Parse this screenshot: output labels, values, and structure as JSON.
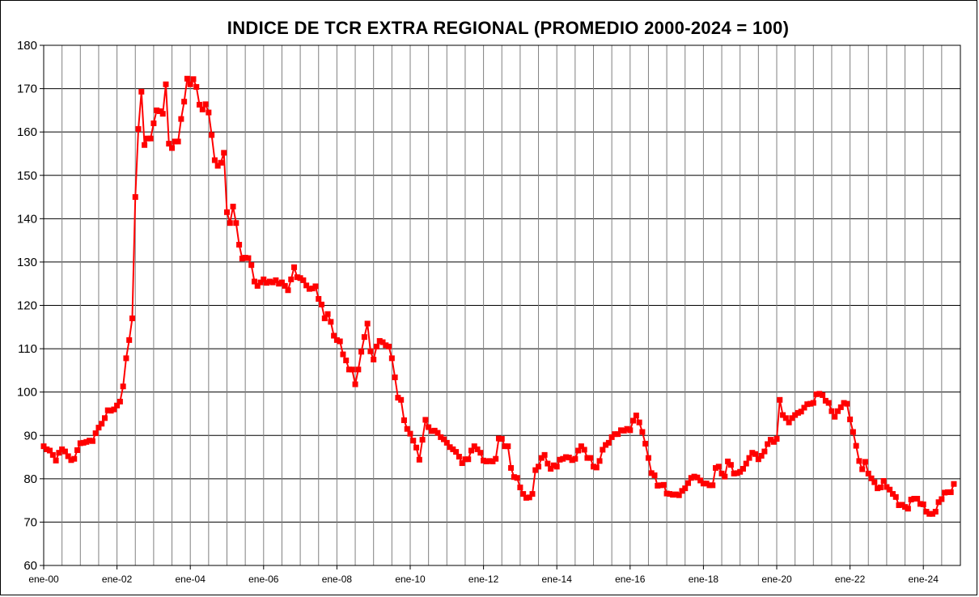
{
  "chart_data": {
    "type": "line",
    "title": "INDICE DE TCR EXTRA REGIONAL  (PROMEDIO 2000-2024  = 100)",
    "xlabel": "",
    "ylabel": "",
    "ylim": [
      60,
      180
    ],
    "yticks": [
      60,
      70,
      80,
      90,
      100,
      110,
      120,
      130,
      140,
      150,
      160,
      170,
      180
    ],
    "x_tick_labels": [
      "ene-00",
      "ene-02",
      "ene-04",
      "ene-06",
      "ene-08",
      "ene-10",
      "ene-12",
      "ene-14",
      "ene-16",
      "ene-18",
      "ene-20",
      "ene-22",
      "ene-24"
    ],
    "grid": true,
    "legend": "none",
    "series": [
      {
        "color": "#ff0000",
        "marker": "square",
        "values": [
          87.5,
          86.8,
          86.5,
          85.5,
          84.2,
          86.0,
          86.8,
          86.3,
          85.2,
          84.3,
          84.6,
          86.6,
          88.2,
          88.3,
          88.5,
          88.8,
          88.7,
          90.5,
          91.8,
          92.7,
          94.0,
          95.8,
          95.7,
          96.0,
          96.9,
          97.8,
          101.3,
          107.8,
          112.0,
          117.0,
          145.0,
          160.7,
          169.3,
          157.0,
          158.5,
          158.5,
          162.0,
          165.0,
          164.8,
          164.2,
          171.0,
          157.3,
          156.3,
          157.8,
          157.8,
          163.0,
          167.0,
          172.3,
          171.0,
          172.2,
          170.4,
          166.3,
          165.2,
          166.4,
          164.5,
          159.3,
          153.5,
          152.2,
          152.9,
          155.2,
          141.5,
          139.0,
          142.8,
          139.0,
          134.0,
          130.8,
          131.0,
          130.9,
          129.3,
          125.5,
          124.5,
          125.3,
          126.0,
          125.2,
          125.5,
          125.3,
          125.8,
          125.0,
          125.3,
          124.5,
          123.5,
          126.0,
          128.8,
          126.5,
          126.3,
          125.8,
          124.6,
          123.8,
          123.9,
          124.4,
          121.5,
          120.2,
          117.0,
          118.0,
          116.2,
          113.0,
          112.0,
          111.7,
          108.7,
          107.3,
          105.2,
          105.2,
          101.8,
          105.2,
          109.3,
          112.7,
          115.8,
          109.4,
          107.5,
          110.5,
          111.8,
          111.5,
          110.8,
          110.5,
          107.8,
          103.4,
          98.7,
          98.2,
          93.5,
          91.5,
          90.4,
          88.8,
          87.2,
          84.4,
          89.0,
          93.6,
          91.9,
          91.0,
          91.1,
          90.6,
          89.6,
          89.1,
          88.3,
          87.3,
          86.8,
          86.2,
          85.1,
          83.6,
          84.5,
          84.5,
          86.5,
          87.5,
          86.8,
          86.0,
          84.2,
          84.0,
          84.1,
          84.0,
          84.6,
          89.3,
          89.2,
          87.5,
          87.5,
          82.5,
          80.4,
          80.2,
          78.0,
          76.5,
          75.6,
          75.7,
          76.5,
          82.0,
          82.8,
          84.8,
          85.5,
          83.5,
          82.3,
          83.1,
          82.8,
          84.4,
          84.6,
          85.0,
          84.9,
          84.3,
          84.6,
          86.5,
          87.5,
          86.7,
          84.8,
          84.8,
          82.8,
          82.6,
          84.1,
          86.7,
          87.8,
          88.3,
          89.6,
          90.3,
          90.3,
          91.2,
          91.1,
          91.5,
          91.2,
          93.4,
          94.6,
          93.0,
          90.8,
          88.1,
          84.8,
          81.3,
          80.8,
          78.4,
          78.5,
          78.6,
          76.6,
          76.5,
          76.3,
          76.4,
          76.2,
          77.2,
          77.8,
          79.0,
          80.2,
          80.5,
          80.3,
          79.6,
          78.9,
          78.9,
          78.5,
          78.5,
          82.5,
          82.8,
          81.2,
          80.5,
          84.0,
          83.2,
          81.2,
          81.3,
          81.6,
          82.3,
          83.5,
          84.8,
          86.0,
          85.7,
          84.5,
          85.3,
          86.3,
          88.0,
          89.0,
          88.5,
          89.2,
          98.2,
          94.7,
          94.0,
          93.0,
          94.0,
          94.7,
          95.2,
          95.5,
          96.4,
          97.2,
          97.3,
          97.5,
          99.5,
          99.6,
          99.3,
          98.0,
          97.5,
          95.6,
          94.3,
          95.6,
          96.5,
          97.5,
          97.3,
          93.7,
          90.8,
          87.6,
          84.1,
          82.2,
          83.9,
          81.2,
          80.1,
          79.2,
          77.8,
          78.0,
          79.5,
          78.1,
          77.5,
          76.5,
          75.8,
          73.9,
          74.0,
          73.5,
          73.1,
          75.2,
          75.4,
          75.4,
          74.2,
          74.1,
          72.4,
          71.9,
          71.9,
          72.4,
          74.6,
          75.3,
          76.8,
          76.9,
          76.9,
          78.8
        ]
      }
    ]
  }
}
